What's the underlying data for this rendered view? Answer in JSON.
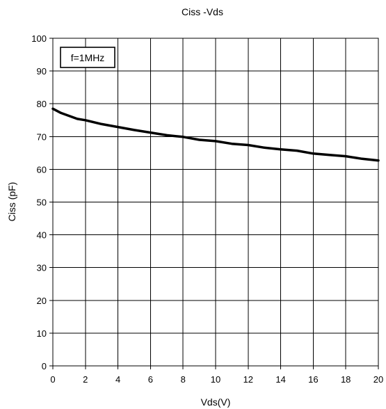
{
  "chart_data": {
    "type": "line",
    "title": "Ciss -Vds",
    "xlabel": "Vds(V)",
    "ylabel": "Ciss (pF)",
    "xlim": [
      0,
      20
    ],
    "ylim": [
      0,
      100
    ],
    "x_ticks": [
      0,
      2,
      4,
      6,
      8,
      10,
      12,
      14,
      16,
      18,
      20
    ],
    "y_ticks": [
      0,
      10,
      20,
      30,
      40,
      50,
      60,
      70,
      80,
      90,
      100
    ],
    "grid": true,
    "annotation": "f=1MHz",
    "series": [
      {
        "color": "#000000",
        "x": [
          0,
          0.5,
          1,
          1.5,
          2,
          3,
          4,
          5,
          6,
          7,
          8,
          9,
          10,
          11,
          12,
          13,
          14,
          15,
          16,
          17,
          18,
          19,
          20
        ],
        "y": [
          78.5,
          77.2,
          76.3,
          75.4,
          75.0,
          73.8,
          72.9,
          72.0,
          71.2,
          70.4,
          69.9,
          69.0,
          68.6,
          67.8,
          67.4,
          66.6,
          66.1,
          65.7,
          64.8,
          64.4,
          64.0,
          63.2,
          62.7
        ]
      }
    ]
  }
}
